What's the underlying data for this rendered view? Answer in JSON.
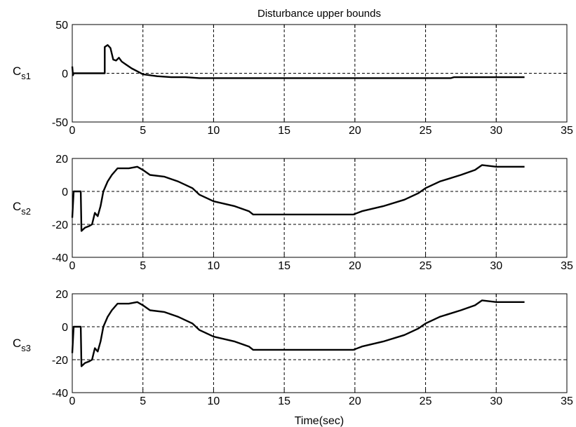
{
  "title": "Disturbance upper bounds",
  "xlabel": "Time(sec)",
  "chart_data": [
    {
      "type": "line",
      "ylabel_main": "C",
      "ylabel_sub": "s1",
      "xlim": [
        0,
        35
      ],
      "ylim": [
        -50,
        50
      ],
      "xticks": [
        0,
        5,
        10,
        15,
        20,
        25,
        30,
        35
      ],
      "yticks": [
        -50,
        0,
        50
      ],
      "grid": true,
      "x": [
        0,
        0.05,
        0.1,
        2.3,
        2.3,
        2.5,
        2.7,
        2.9,
        3.1,
        3.3,
        3.5,
        3.8,
        4.2,
        4.6,
        5.0,
        5.5,
        6.0,
        7.0,
        8.0,
        9.0,
        12.0,
        20.0,
        26.8,
        27.0,
        32.0
      ],
      "y": [
        7,
        -2,
        0,
        0,
        27,
        29,
        26,
        14,
        13,
        16,
        12,
        9,
        5,
        2,
        -1,
        -2,
        -3,
        -4,
        -4,
        -5,
        -5,
        -5,
        -5,
        -4,
        -4
      ]
    },
    {
      "type": "line",
      "ylabel_main": "C",
      "ylabel_sub": "s2",
      "xlim": [
        0,
        35
      ],
      "ylim": [
        -40,
        20
      ],
      "xticks": [
        0,
        5,
        10,
        15,
        20,
        25,
        30,
        35
      ],
      "yticks": [
        -40,
        -20,
        0,
        20
      ],
      "grid": true,
      "x": [
        0,
        0.1,
        0.6,
        0.65,
        0.9,
        1.2,
        1.4,
        1.6,
        1.8,
        2.0,
        2.2,
        2.5,
        2.8,
        3.2,
        4.0,
        4.6,
        5.0,
        5.5,
        6.5,
        7.5,
        8.5,
        9.0,
        10.0,
        11.5,
        12.5,
        12.8,
        14.0,
        15.0,
        17.0,
        19.0,
        19.9,
        20.5,
        22.0,
        23.5,
        24.5,
        25.0,
        26.0,
        27.5,
        28.5,
        29.0,
        30.0,
        32.0
      ],
      "y": [
        -16,
        0,
        0,
        -24,
        -22,
        -21,
        -20,
        -13,
        -15,
        -9,
        0,
        6,
        10,
        14,
        14,
        15,
        13,
        10,
        9,
        6,
        2,
        -2,
        -6,
        -9,
        -12,
        -14,
        -14,
        -14,
        -14,
        -14,
        -14,
        -12,
        -9,
        -5,
        -1,
        2,
        6,
        10,
        13,
        16,
        15,
        15
      ]
    },
    {
      "type": "line",
      "ylabel_main": "C",
      "ylabel_sub": "s3",
      "xlim": [
        0,
        35
      ],
      "ylim": [
        -40,
        20
      ],
      "xticks": [
        0,
        5,
        10,
        15,
        20,
        25,
        30,
        35
      ],
      "yticks": [
        -40,
        -20,
        0,
        20
      ],
      "grid": true,
      "x": [
        0,
        0.1,
        0.6,
        0.65,
        0.9,
        1.2,
        1.4,
        1.6,
        1.8,
        2.0,
        2.2,
        2.5,
        2.8,
        3.2,
        4.0,
        4.6,
        5.0,
        5.5,
        6.5,
        7.5,
        8.5,
        9.0,
        10.0,
        11.5,
        12.5,
        12.8,
        14.0,
        15.0,
        17.0,
        19.0,
        19.9,
        20.5,
        22.0,
        23.5,
        24.5,
        25.0,
        26.0,
        27.5,
        28.5,
        29.0,
        30.0,
        32.0
      ],
      "y": [
        -16,
        0,
        0,
        -24,
        -22,
        -21,
        -20,
        -13,
        -15,
        -9,
        0,
        6,
        10,
        14,
        14,
        15,
        13,
        10,
        9,
        6,
        2,
        -2,
        -6,
        -9,
        -12,
        -14,
        -14,
        -14,
        -14,
        -14,
        -14,
        -12,
        -9,
        -5,
        -1,
        2,
        6,
        10,
        13,
        16,
        15,
        15
      ]
    }
  ]
}
